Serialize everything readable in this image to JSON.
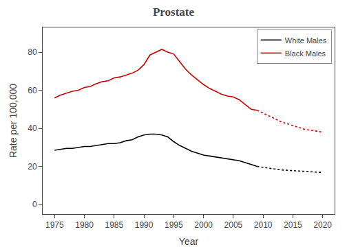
{
  "chart_data": {
    "type": "line",
    "title": "Prostate",
    "xlabel": "Year",
    "ylabel": "Rate per 100,000",
    "x": [
      1975,
      1976,
      1977,
      1978,
      1979,
      1980,
      1981,
      1982,
      1983,
      1984,
      1985,
      1986,
      1987,
      1988,
      1989,
      1990,
      1991,
      1992,
      1993,
      1994,
      1995,
      1996,
      1997,
      1998,
      1999,
      2000,
      2001,
      2002,
      2003,
      2004,
      2005,
      2006,
      2007,
      2008,
      2009,
      2010,
      2011,
      2012,
      2013,
      2014,
      2015,
      2016,
      2017,
      2018,
      2019,
      2020
    ],
    "series": [
      {
        "name": "White Males",
        "color": "#000000",
        "line_style": "solid",
        "values": [
          28.5,
          29.0,
          29.5,
          29.5,
          30.0,
          30.5,
          30.5,
          31.0,
          31.5,
          32.0,
          32.0,
          32.5,
          33.5,
          34.0,
          35.5,
          36.5,
          37.0,
          37.0,
          36.5,
          35.5,
          33.0,
          31.0,
          29.5,
          28.0,
          27.0,
          26.0,
          25.5,
          25.0,
          24.5,
          24.0,
          23.5,
          23.0,
          22.0,
          21.0,
          20.0,
          null,
          null,
          null,
          null,
          null,
          null,
          null,
          null,
          null,
          null,
          null
        ]
      },
      {
        "color": "#000000",
        "line_style": "dotted",
        "values": [
          null,
          null,
          null,
          null,
          null,
          null,
          null,
          null,
          null,
          null,
          null,
          null,
          null,
          null,
          null,
          null,
          null,
          null,
          null,
          null,
          null,
          null,
          null,
          null,
          null,
          null,
          null,
          null,
          null,
          null,
          null,
          null,
          null,
          null,
          20.0,
          19.5,
          19.0,
          18.5,
          18.2,
          18.0,
          17.8,
          17.5,
          17.3,
          17.1,
          17.0,
          16.8
        ]
      },
      {
        "name": "Black Males",
        "color": "#cc0000",
        "line_style": "solid",
        "values": [
          56.0,
          57.5,
          58.5,
          59.5,
          60.0,
          61.5,
          62.0,
          63.5,
          64.5,
          65.0,
          66.5,
          67.0,
          68.0,
          69.0,
          70.5,
          73.5,
          78.5,
          80.0,
          81.5,
          80.0,
          79.0,
          75.0,
          71.0,
          68.0,
          65.5,
          63.0,
          61.0,
          59.5,
          58.0,
          57.0,
          56.5,
          55.0,
          52.5,
          50.0,
          49.5,
          null,
          null,
          null,
          null,
          null,
          null,
          null,
          null,
          null,
          null,
          null
        ]
      },
      {
        "color": "#cc0000",
        "line_style": "dotted",
        "values": [
          null,
          null,
          null,
          null,
          null,
          null,
          null,
          null,
          null,
          null,
          null,
          null,
          null,
          null,
          null,
          null,
          null,
          null,
          null,
          null,
          null,
          null,
          null,
          null,
          null,
          null,
          null,
          null,
          null,
          null,
          null,
          null,
          null,
          null,
          49.5,
          48.0,
          46.5,
          45.0,
          43.5,
          42.5,
          41.5,
          40.5,
          39.5,
          39.0,
          38.5,
          38.0
        ]
      }
    ],
    "xlim": [
      1973,
      2022
    ],
    "ylim": [
      -5,
      93
    ],
    "xticks": [
      1975,
      1980,
      1985,
      1990,
      1995,
      2000,
      2005,
      2010,
      2015,
      2020
    ],
    "yticks": [
      0,
      20,
      40,
      60,
      80
    ],
    "grid": false,
    "legend": "upper right"
  }
}
